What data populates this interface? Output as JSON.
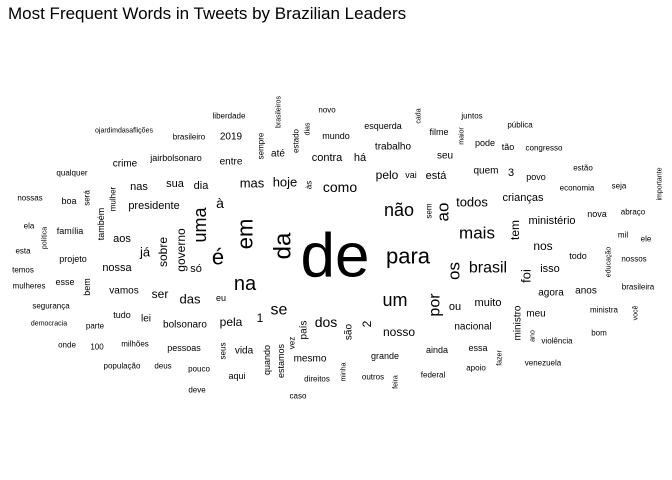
{
  "chart_data": {
    "type": "wordcloud",
    "title": "Most Frequent Words in Tweets by Brazilian Leaders",
    "text_color": "#000000",
    "background": "#ffffff",
    "words": [
      {
        "text": "de",
        "weight": 100
      },
      {
        "text": "para",
        "weight": 44
      },
      {
        "text": "da",
        "weight": 40
      },
      {
        "text": "em",
        "weight": 38
      },
      {
        "text": "é",
        "weight": 34
      },
      {
        "text": "na",
        "weight": 33
      },
      {
        "text": "não",
        "weight": 30
      },
      {
        "text": "um",
        "weight": 30
      },
      {
        "text": "uma",
        "weight": 28
      },
      {
        "text": "mais",
        "weight": 27
      },
      {
        "text": "os",
        "weight": 27
      },
      {
        "text": "ao",
        "weight": 26
      },
      {
        "text": "brasil",
        "weight": 25
      },
      {
        "text": "se",
        "weight": 25
      },
      {
        "text": "por",
        "weight": 24
      },
      {
        "text": "como",
        "weight": 20
      },
      {
        "text": "dos",
        "weight": 20
      },
      {
        "text": "hoje",
        "weight": 19
      },
      {
        "text": "foi",
        "weight": 18
      },
      {
        "text": "à",
        "weight": 18
      },
      {
        "text": "mas",
        "weight": 18
      },
      {
        "text": "todos",
        "weight": 17
      },
      {
        "text": "tem",
        "weight": 17
      },
      {
        "text": "nosso",
        "weight": 16
      },
      {
        "text": "sobre",
        "weight": 16
      },
      {
        "text": "governo",
        "weight": 16
      },
      {
        "text": "das",
        "weight": 16
      },
      {
        "text": "pelo",
        "weight": 15
      },
      {
        "text": "está",
        "weight": 15
      },
      {
        "text": "ser",
        "weight": 15
      },
      {
        "text": "já",
        "weight": 15
      },
      {
        "text": "nos",
        "weight": 15
      },
      {
        "text": "pela",
        "weight": 15
      },
      {
        "text": "muito",
        "weight": 14
      },
      {
        "text": "ou",
        "weight": 14
      },
      {
        "text": "presidente",
        "weight": 14
      },
      {
        "text": "há",
        "weight": 14
      },
      {
        "text": "contra",
        "weight": 14
      },
      {
        "text": "aos",
        "weight": 14
      },
      {
        "text": "nossa",
        "weight": 14
      },
      {
        "text": "dia",
        "weight": 14
      },
      {
        "text": "sua",
        "weight": 14
      },
      {
        "text": "isso",
        "weight": 14
      },
      {
        "text": "agora",
        "weight": 13
      },
      {
        "text": "nas",
        "weight": 13
      },
      {
        "text": "só",
        "weight": 13
      },
      {
        "text": "1",
        "weight": 13
      },
      {
        "text": "2",
        "weight": 13
      },
      {
        "text": "3",
        "weight": 13
      },
      {
        "text": "ministério",
        "weight": 13
      },
      {
        "text": "crianças",
        "weight": 13
      },
      {
        "text": "ministro",
        "weight": 13
      },
      {
        "text": "nacional",
        "weight": 13
      },
      {
        "text": "são",
        "weight": 13
      },
      {
        "text": "vida",
        "weight": 13
      },
      {
        "text": "quem",
        "weight": 13
      },
      {
        "text": "bolsonaro",
        "weight": 13
      },
      {
        "text": "crime",
        "weight": 12
      },
      {
        "text": "entre",
        "weight": 12
      },
      {
        "text": "vamos",
        "weight": 12
      },
      {
        "text": "lei",
        "weight": 12
      },
      {
        "text": "mesmo",
        "weight": 12
      },
      {
        "text": "país",
        "weight": 12
      },
      {
        "text": "trabalho",
        "weight": 12
      },
      {
        "text": "ainda",
        "weight": 12
      },
      {
        "text": "meu",
        "weight": 12
      },
      {
        "text": "anos",
        "weight": 12
      },
      {
        "text": "pessoas",
        "weight": 12
      },
      {
        "text": "até",
        "weight": 12
      },
      {
        "text": "mundo",
        "weight": 12
      },
      {
        "text": "2019",
        "weight": 12
      },
      {
        "text": "família",
        "weight": 12
      },
      {
        "text": "tudo",
        "weight": 12
      },
      {
        "text": "eu",
        "weight": 12
      },
      {
        "text": "seu",
        "weight": 12
      },
      {
        "text": "grande",
        "weight": 12
      },
      {
        "text": "essa",
        "weight": 12
      },
      {
        "text": "vai",
        "weight": 12
      },
      {
        "text": "jairbolsonaro",
        "weight": 12
      },
      {
        "text": "projeto",
        "weight": 12
      },
      {
        "text": "boa",
        "weight": 12
      },
      {
        "text": "também",
        "weight": 12
      },
      {
        "text": "esse",
        "weight": 11
      },
      {
        "text": "bem",
        "weight": 11
      },
      {
        "text": "nova",
        "weight": 11
      },
      {
        "text": "todo",
        "weight": 11
      },
      {
        "text": "esquerda",
        "weight": 11
      },
      {
        "text": "novo",
        "weight": 11
      },
      {
        "text": "aqui",
        "weight": 11
      },
      {
        "text": "vez",
        "weight": 11
      },
      {
        "text": "outros",
        "weight": 11
      },
      {
        "text": "federal",
        "weight": 11
      },
      {
        "text": "apoio",
        "weight": 11
      },
      {
        "text": "direitos",
        "weight": 11
      },
      {
        "text": "deus",
        "weight": 11
      },
      {
        "text": "pouco",
        "weight": 11
      },
      {
        "text": "estamos",
        "weight": 11
      },
      {
        "text": "quando",
        "weight": 11
      },
      {
        "text": "seus",
        "weight": 11
      },
      {
        "text": "mulher",
        "weight": 11
      },
      {
        "text": "será",
        "weight": 11
      },
      {
        "text": "estado",
        "weight": 11
      },
      {
        "text": "sempre",
        "weight": 11
      },
      {
        "text": "povo",
        "weight": 11
      },
      {
        "text": "congresso",
        "weight": 11
      },
      {
        "text": "pode",
        "weight": 11
      },
      {
        "text": "tão",
        "weight": 11
      },
      {
        "text": "filme",
        "weight": 11
      },
      {
        "text": "liberdade",
        "weight": 11
      },
      {
        "text": "brasileiro",
        "weight": 11
      },
      {
        "text": "economia",
        "weight": 11
      },
      {
        "text": "estão",
        "weight": 11
      },
      {
        "text": "mil",
        "weight": 11
      },
      {
        "text": "ele",
        "weight": 11
      },
      {
        "text": "sem",
        "weight": 11
      },
      {
        "text": "às",
        "weight": 11
      },
      {
        "text": "minha",
        "weight": 10
      },
      {
        "text": "fazer",
        "weight": 10
      },
      {
        "text": "ano",
        "weight": 10
      },
      {
        "text": "violência",
        "weight": 10
      },
      {
        "text": "bom",
        "weight": 10
      },
      {
        "text": "ministra",
        "weight": 10
      },
      {
        "text": "você",
        "weight": 10
      },
      {
        "text": "brasileira",
        "weight": 10
      },
      {
        "text": "nossos",
        "weight": 10
      },
      {
        "text": "educação",
        "weight": 10
      },
      {
        "text": "abraço",
        "weight": 10
      },
      {
        "text": "seja",
        "weight": 10
      },
      {
        "text": "importante",
        "weight": 10
      },
      {
        "text": "venezuela",
        "weight": 10
      },
      {
        "text": "caso",
        "weight": 10
      },
      {
        "text": "deve",
        "weight": 10
      },
      {
        "text": "população",
        "weight": 10
      },
      {
        "text": "milhões",
        "weight": 10
      },
      {
        "text": "100",
        "weight": 10
      },
      {
        "text": "onde",
        "weight": 10
      },
      {
        "text": "parte",
        "weight": 10
      },
      {
        "text": "democracia",
        "weight": 10
      },
      {
        "text": "segurança",
        "weight": 10
      },
      {
        "text": "mulheres",
        "weight": 10
      },
      {
        "text": "temos",
        "weight": 10
      },
      {
        "text": "esta",
        "weight": 10
      },
      {
        "text": "ela",
        "weight": 10
      },
      {
        "text": "política",
        "weight": 10
      },
      {
        "text": "nossas",
        "weight": 10
      },
      {
        "text": "qualquer",
        "weight": 10
      },
      {
        "text": "ojardimdasaflições",
        "weight": 9
      },
      {
        "text": "brasileiros",
        "weight": 10
      },
      {
        "text": "dias",
        "weight": 10
      },
      {
        "text": "cada",
        "weight": 10
      },
      {
        "text": "juntos",
        "weight": 10
      },
      {
        "text": "pública",
        "weight": 10
      },
      {
        "text": "maior",
        "weight": 10
      },
      {
        "text": "feira",
        "weight": 10
      }
    ]
  }
}
